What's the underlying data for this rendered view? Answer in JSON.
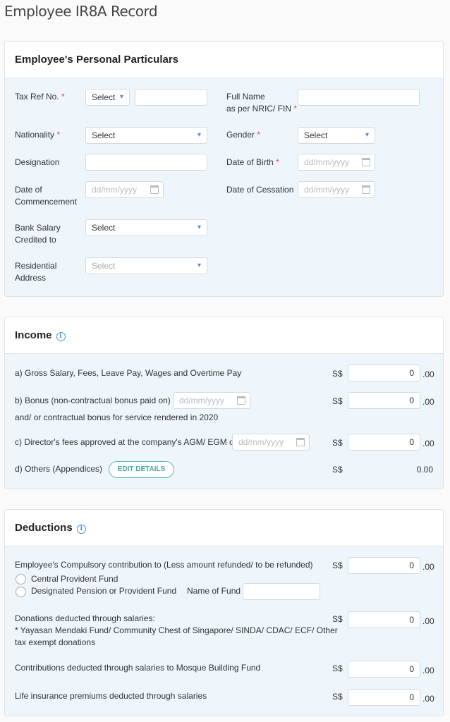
{
  "page_title": "Employee IR8A Record",
  "personal": {
    "title": "Employee's Personal Particulars",
    "tax_ref_label": "Tax Ref No.",
    "tax_ref_type": "Select",
    "tax_ref_value": "",
    "full_name_label_1": "Full Name",
    "full_name_label_2": "as per NRIC/ FIN",
    "full_name_value": "",
    "nationality_label": "Nationality",
    "nationality_value": "Select",
    "gender_label": "Gender",
    "gender_value": "Select",
    "designation_label": "Designation",
    "designation_value": "",
    "dob_label": "Date of Birth",
    "dob_placeholder": "dd/mm/yyyy",
    "commencement_label_1": "Date of",
    "commencement_label_2": "Commencement",
    "commencement_placeholder": "dd/mm/yyyy",
    "cessation_label": "Date of Cessation",
    "cessation_placeholder": "dd/mm/yyyy",
    "bank_label_1": "Bank Salary",
    "bank_label_2": "Credited to",
    "bank_value": "Select",
    "address_label_1": "Residential",
    "address_label_2": "Address",
    "address_value": "Select",
    "required_mark": "*"
  },
  "income": {
    "title": "Income",
    "currency": "S$",
    "decimals": ".00",
    "gross_label": "a) Gross Salary, Fees, Leave Pay, Wages and Overtime Pay",
    "gross_value": "0",
    "bonus_label": "b) Bonus (non-contractual bonus paid on)",
    "bonus_label_2": "and/ or contractual bonus for service rendered in 2020",
    "bonus_date_placeholder": "dd/mm/yyyy",
    "bonus_value": "0",
    "director_label": "c) Director's fees approved at the company's AGM/ EGM on",
    "director_date_placeholder": "dd/mm/yyyy",
    "director_value": "0",
    "others_label": "d) Others (Appendices)",
    "edit_details": "EDIT DETAILS",
    "others_value": "0.00"
  },
  "deductions": {
    "title": "Deductions",
    "currency": "S$",
    "decimals": ".00",
    "cpf_label": "Employee's Compulsory contribution to (Less amount refunded/ to be refunded)",
    "cpf_value": "0",
    "radio_cpf": "Central Provident Fund",
    "radio_pension": "Designated Pension or Provident Fund",
    "fund_name_label": "Name of Fund",
    "fund_name_value": "",
    "donations_label_1": "Donations deducted through salaries:",
    "donations_label_2": "* Yayasan Mendaki Fund/ Community Chest of Singapore/ SINDA/ CDAC/ ECF/ Other",
    "donations_label_3": "tax exempt donations",
    "donations_value": "0",
    "mosque_label": "Contributions deducted through salaries to Mosque Building Fund",
    "mosque_value": "0",
    "insurance_label": "Life insurance premiums deducted through salaries",
    "insurance_value": "0"
  }
}
